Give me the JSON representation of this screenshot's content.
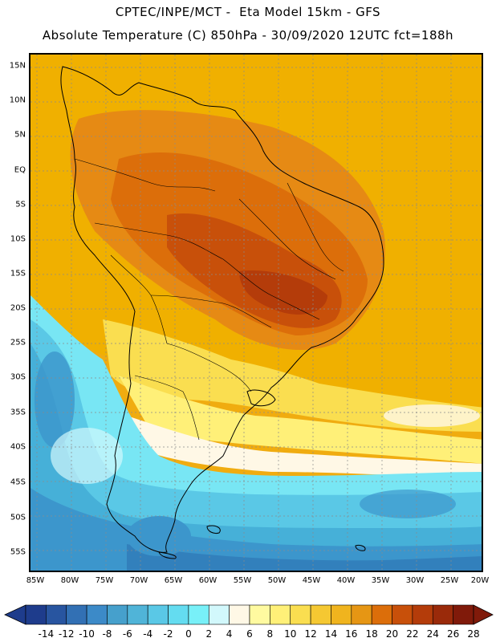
{
  "header": {
    "title_line1": "CPTEC/INPE/MCT -  Eta Model 15km - GFS",
    "title_line2": "Absolute Temperature (C) 850hPa - 30/09/2020 12UTC fct=188h"
  },
  "map": {
    "lat_labels": [
      "15N",
      "10N",
      "5N",
      "EQ",
      "5S",
      "10S",
      "15S",
      "20S",
      "25S",
      "30S",
      "35S",
      "40S",
      "45S",
      "50S",
      "55S"
    ],
    "lon_labels": [
      "85W",
      "80W",
      "75W",
      "70W",
      "65W",
      "60W",
      "55W",
      "50W",
      "45W",
      "40W",
      "35W",
      "30W",
      "25W",
      "20W"
    ]
  },
  "legend": {
    "labels": [
      "-14",
      "-12",
      "-10",
      "-8",
      "-6",
      "-4",
      "-2",
      "0",
      "2",
      "4",
      "6",
      "8",
      "10",
      "12",
      "14",
      "16",
      "18",
      "20",
      "22",
      "24",
      "26",
      "28"
    ],
    "colors": [
      "#1e3c8c",
      "#2855a0",
      "#3270b4",
      "#3c8ac8",
      "#46a0cc",
      "#50b4d8",
      "#5ac8e6",
      "#64dcf0",
      "#78f0f8",
      "#d2f8fc",
      "#fff8e6",
      "#fffaa0",
      "#fff078",
      "#fade50",
      "#f5c832",
      "#f0b41e",
      "#e69614",
      "#dc6e0a",
      "#c8500a",
      "#b43c0a",
      "#9a2a0a",
      "#801a0a"
    ]
  }
}
